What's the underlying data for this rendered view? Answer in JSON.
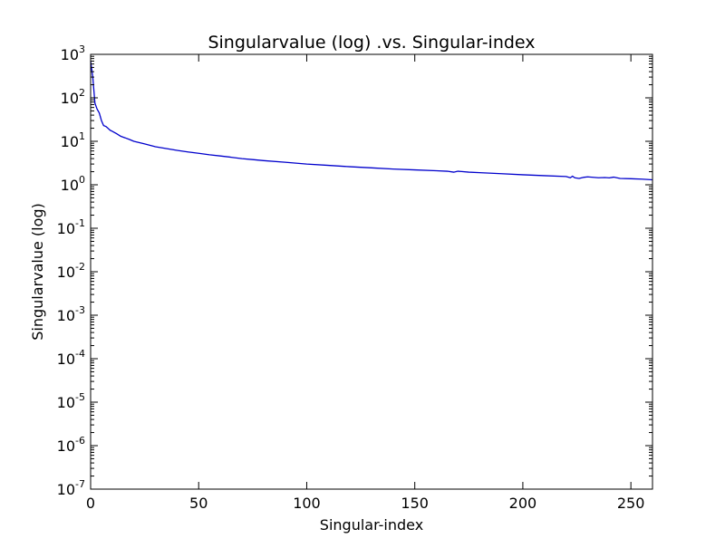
{
  "chart_data": {
    "type": "line",
    "title": "Singularvalue (log) .vs. Singular-index",
    "xlabel": "Singular-index",
    "ylabel": "Singularvalue (log)",
    "xlim": [
      0,
      260
    ],
    "ylim": [
      1e-07,
      1000
    ],
    "yscale": "log",
    "grid": false,
    "xticks": [
      0,
      50,
      100,
      150,
      200,
      250
    ],
    "xtick_labels": [
      "0",
      "50",
      "100",
      "150",
      "200",
      "250"
    ],
    "yticks": [
      1e-07,
      1e-06,
      1e-05,
      0.0001,
      0.001,
      0.01,
      0.1,
      1,
      10,
      100,
      1000
    ],
    "ytick_labels": [
      {
        "base": "10",
        "exp": "-7"
      },
      {
        "base": "10",
        "exp": "-6"
      },
      {
        "base": "10",
        "exp": "-5"
      },
      {
        "base": "10",
        "exp": "-4"
      },
      {
        "base": "10",
        "exp": "-3"
      },
      {
        "base": "10",
        "exp": "-2"
      },
      {
        "base": "10",
        "exp": "-1"
      },
      {
        "base": "10",
        "exp": "0"
      },
      {
        "base": "10",
        "exp": "1"
      },
      {
        "base": "10",
        "exp": "2"
      },
      {
        "base": "10",
        "exp": "3"
      }
    ],
    "series": [
      {
        "color": "#0000cc",
        "x": [
          0,
          1,
          2,
          3,
          4,
          5,
          6,
          7,
          8,
          9,
          10,
          12,
          14,
          16,
          18,
          20,
          25,
          30,
          35,
          40,
          45,
          50,
          55,
          60,
          65,
          70,
          75,
          80,
          90,
          100,
          110,
          120,
          130,
          140,
          150,
          160,
          165,
          168,
          170,
          175,
          180,
          190,
          200,
          210,
          220,
          222,
          223,
          224,
          226,
          228,
          230,
          235,
          238,
          240,
          242,
          245,
          250,
          255,
          260
        ],
        "y": [
          700,
          300,
          75,
          55,
          45,
          30,
          23,
          22,
          20,
          18,
          17,
          15,
          13,
          12,
          11,
          10,
          8.7,
          7.5,
          6.8,
          6.2,
          5.7,
          5.3,
          4.9,
          4.6,
          4.3,
          4.0,
          3.8,
          3.6,
          3.3,
          3.0,
          2.8,
          2.6,
          2.45,
          2.3,
          2.2,
          2.1,
          2.05,
          1.95,
          2.05,
          1.95,
          1.9,
          1.8,
          1.7,
          1.62,
          1.55,
          1.45,
          1.58,
          1.45,
          1.4,
          1.48,
          1.52,
          1.45,
          1.47,
          1.44,
          1.5,
          1.4,
          1.38,
          1.35,
          1.3
        ]
      }
    ]
  }
}
